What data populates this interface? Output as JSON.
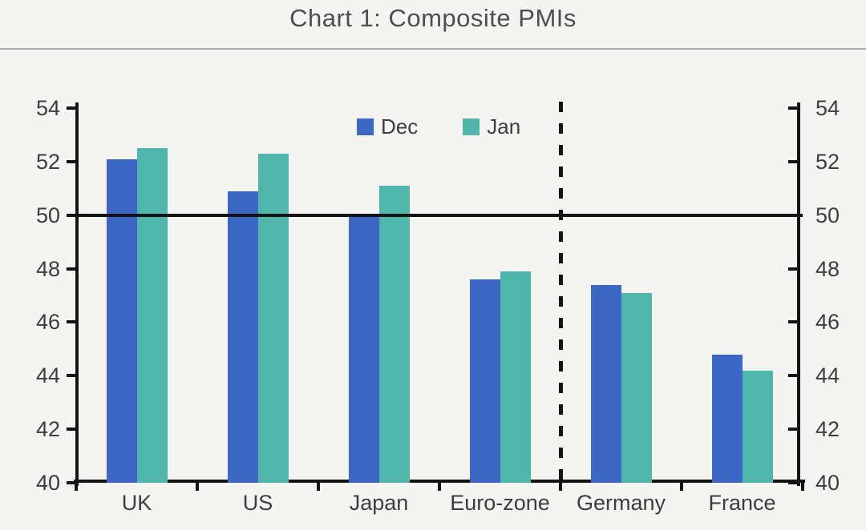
{
  "page": {
    "title": "Chart 1: Composite PMIs"
  },
  "colors": {
    "background": "#f4f4f2",
    "axis": "#141414",
    "text": "#3d3d3d",
    "dec_bar": "#3c67c6",
    "jan_bar": "#50b6ac"
  },
  "chart_data": {
    "type": "bar",
    "title": "Chart 1: Composite PMIs",
    "categories": [
      "UK",
      "US",
      "Japan",
      "Euro-zone",
      "Germany",
      "France"
    ],
    "series": [
      {
        "name": "Dec",
        "color": "#3c67c6",
        "values": [
          52.1,
          50.9,
          50.0,
          47.6,
          47.4,
          44.8
        ]
      },
      {
        "name": "Jan",
        "color": "#50b6ac",
        "values": [
          52.5,
          52.3,
          51.1,
          47.9,
          47.1,
          44.2
        ]
      }
    ],
    "xlabel": "",
    "ylabel": "",
    "ylim": [
      40,
      54
    ],
    "yticks": [
      40,
      42,
      44,
      46,
      48,
      50,
      52,
      54
    ],
    "y_axis_sides": [
      "left",
      "right"
    ],
    "reference_line_y": 50,
    "divider_after_category": "Euro-zone",
    "legend_position": "top-center",
    "grid": false
  }
}
